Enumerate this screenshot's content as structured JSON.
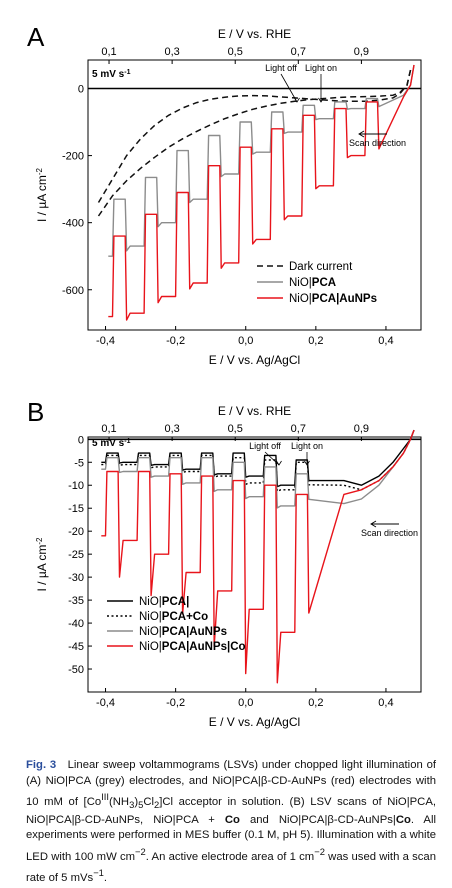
{
  "chart_data": [
    {
      "panel": "A",
      "type": "line",
      "xlabel": "E / V vs. Ag/AgCl",
      "ylabel": "I / µA cm⁻²",
      "top_xlabel": "E / V vs. RHE",
      "xlim": [
        -0.45,
        0.5
      ],
      "ylim": [
        -720,
        85
      ],
      "xticks": [
        "-0,4",
        "-0,2",
        "0,0",
        "0,2",
        "0,4"
      ],
      "xtick_values": [
        -0.4,
        -0.2,
        0.0,
        0.2,
        0.4
      ],
      "yticks": [
        "0",
        "-200",
        "-400",
        "-600"
      ],
      "ytick_values": [
        0,
        -200,
        -400,
        -600
      ],
      "top_xticks": [
        "0,1",
        "0,3",
        "0,5",
        "0,7",
        "0,9"
      ],
      "top_xtick_values": [
        -0.39,
        -0.21,
        -0.03,
        0.15,
        0.33
      ],
      "legend_position": "lower-right",
      "annotations": {
        "scan_rate": "5 mV s⁻¹",
        "light_off": "Light off",
        "light_on": "Light on",
        "scan_direction": "Scan direction"
      },
      "chop": {
        "dark_start": [
          -0.38,
          -0.29,
          -0.2,
          -0.11,
          -0.02,
          0.07,
          0.16,
          0.25,
          0.34
        ],
        "dark_width": 0.036,
        "end": 0.43
      },
      "series": [
        {
          "name": "Dark current",
          "style": "dashed",
          "color": "#111111",
          "x": [
            -0.42,
            -0.38,
            -0.34,
            -0.3,
            -0.26,
            -0.22,
            -0.18,
            -0.14,
            -0.1,
            -0.06,
            -0.02,
            0.02,
            0.06,
            0.1,
            0.14,
            0.18,
            0.22,
            0.26,
            0.3,
            0.34,
            0.38,
            0.42,
            0.44,
            0.46,
            0.47
          ],
          "y": [
            -380,
            -320,
            -275,
            -238,
            -205,
            -175,
            -150,
            -128,
            -108,
            -90,
            -75,
            -62,
            -52,
            -44,
            -38,
            -33,
            -30,
            -27,
            -25,
            -24,
            -23,
            -20,
            -12,
            10,
            55
          ]
        },
        {
          "name": "Dark current",
          "style": "dashed",
          "color": "#111111",
          "x": [
            -0.42,
            -0.38,
            -0.34,
            -0.3,
            -0.26,
            -0.22,
            -0.18,
            -0.14,
            -0.1,
            -0.06,
            -0.02,
            0.02,
            0.06,
            0.1,
            0.14,
            0.18,
            0.22,
            0.26,
            0.3,
            0.34,
            0.38,
            0.42,
            0.44,
            0.46,
            0.47
          ],
          "y": [
            -340,
            -270,
            -200,
            -150,
            -110,
            -80,
            -58,
            -42,
            -32,
            -26,
            -22,
            -21,
            -22,
            -25,
            -28,
            -31,
            -34,
            -37,
            -38,
            -38,
            -35,
            -28,
            -15,
            10,
            55
          ]
        },
        {
          "name": "NiO|PCA",
          "bold": "PCA",
          "color": "#8c8c8c",
          "dark": [
            -330,
            -265,
            -185,
            -140,
            -100,
            -70,
            -50,
            -40,
            -30
          ],
          "light": [
            -500,
            -470,
            -400,
            -330,
            -255,
            -190,
            -130,
            -90,
            -60
          ],
          "x_end": [
            0.45,
            0.47,
            0.48
          ],
          "y_end": [
            -20,
            10,
            70
          ]
        },
        {
          "name": "NiO|PCA|AuNPs",
          "bold": "PCA|AuNPs",
          "color": "#e8141b",
          "dark": [
            -440,
            -375,
            -310,
            -230,
            -175,
            -120,
            -80,
            -60,
            -40
          ],
          "light": [
            -680,
            -670,
            -620,
            -580,
            -520,
            -450,
            -380,
            -290,
            -200
          ],
          "x_end": [
            0.45,
            0.47,
            0.48
          ],
          "y_end": [
            -25,
            10,
            70
          ]
        }
      ]
    },
    {
      "panel": "B",
      "type": "line",
      "xlabel": "E / V vs. Ag/AgCl",
      "ylabel": "I / µA cm⁻²",
      "top_xlabel": "E / V vs. RHE",
      "xlim": [
        -0.45,
        0.5
      ],
      "ylim": [
        -55,
        0.5
      ],
      "xticks": [
        "-0,4",
        "-0,2",
        "0,0",
        "0,2",
        "0,4"
      ],
      "xtick_values": [
        -0.4,
        -0.2,
        0.0,
        0.2,
        0.4
      ],
      "yticks": [
        "0",
        "-5",
        "-10",
        "-15",
        "-20",
        "-25",
        "-30",
        "-35",
        "-40",
        "-45",
        "-50"
      ],
      "ytick_values": [
        0,
        -5,
        -10,
        -15,
        -20,
        -25,
        -30,
        -35,
        -40,
        -45,
        -50
      ],
      "top_xticks": [
        "0,1",
        "0,3",
        "0,5",
        "0,7",
        "0,9"
      ],
      "top_xtick_values": [
        -0.39,
        -0.21,
        -0.03,
        0.15,
        0.33
      ],
      "legend_position": "lower-left",
      "annotations": {
        "scan_rate": "5 mV s⁻¹",
        "light_off": "Light off",
        "light_on": "Light on",
        "scan_direction": "Scan direction"
      },
      "chop": {
        "dark_start": [
          -0.4,
          -0.31,
          -0.22,
          -0.13,
          -0.04,
          0.05,
          0.14
        ],
        "dark_width": 0.036,
        "end": 0.24
      },
      "series": [
        {
          "name": "NiO|PCA|",
          "bold": "PCA|",
          "style": "solid",
          "color": "#000000",
          "dark": [
            -3,
            -3,
            -3,
            -3,
            -3,
            -3.5,
            -4.5
          ],
          "light": [
            -5,
            -5,
            -5.5,
            -6.5,
            -7.5,
            -8,
            -10
          ],
          "x_end": [
            0.28,
            0.33,
            0.38,
            0.42,
            0.45,
            0.47,
            0.48
          ],
          "y_end": [
            -9,
            -10,
            -8,
            -5,
            -2,
            0,
            2
          ]
        },
        {
          "name": "NiO|PCA+Co",
          "bold": "PCA+Co",
          "style": "dotted",
          "color": "#000000",
          "dark": [
            -3.5,
            -3.5,
            -3.5,
            -3.5,
            -4,
            -4.5,
            -5
          ],
          "light": [
            -5.5,
            -5.5,
            -6,
            -7,
            -8,
            -9.5,
            -11
          ],
          "x_end": [
            0.28,
            0.33,
            0.38,
            0.42,
            0.45,
            0.47,
            0.48
          ],
          "y_end": [
            -10,
            -11,
            -9,
            -6,
            -3,
            0,
            2
          ]
        },
        {
          "name": "NiO|PCA|AuNPs",
          "bold": "PCA|AuNPs",
          "style": "solid",
          "color": "#8c8c8c",
          "dark": [
            -4,
            -4,
            -4,
            -4,
            -5,
            -6,
            -7.5
          ],
          "light": [
            -6.5,
            -7,
            -8,
            -9.5,
            -11,
            -12.5,
            -14.5
          ],
          "x_end": [
            0.28,
            0.33,
            0.38,
            0.42,
            0.45,
            0.47,
            0.48
          ],
          "y_end": [
            -14,
            -13,
            -10,
            -6,
            -3,
            0,
            2
          ]
        },
        {
          "name": "NiO|PCA|AuNPs|Co",
          "bold": "PCA|AuNPs|Co",
          "style": "solid",
          "color": "#e8141b",
          "dark": [
            -7,
            -7,
            -7.5,
            -8,
            -9,
            -10,
            -12
          ],
          "light": [
            -21,
            -22,
            -25,
            -29,
            -33,
            -37,
            -42
          ],
          "spike": [
            -30,
            -34,
            -38,
            -45,
            -51,
            -53
          ],
          "x_end": [
            0.28,
            0.33,
            0.38,
            0.42,
            0.45,
            0.47,
            0.48
          ],
          "y_end": [
            -12,
            -11,
            -9,
            -6,
            -3,
            0,
            2
          ]
        }
      ]
    }
  ],
  "panel_letters": [
    "A",
    "B"
  ],
  "caption": {
    "label": "Fig. 3",
    "t1": "Linear sweep voltammograms (LSVs) under chopped light illumination of (A) NiO|PCA (grey) electrodes, and NiO|PCA|β-CD-AuNPs (red) electrodes with 10 mM of [Co",
    "sup1": "III",
    "t2": "(NH",
    "sub1": "3",
    "t3": ")",
    "sub2": "5",
    "t4": "Cl",
    "sub3": "2",
    "t5": "]Cl acceptor in solution. (B) LSV scans of NiO|PCA, NiO|PCA|β-CD-AuNPs, NiO|PCA + ",
    "b1": "Co",
    "t6": " and NiO|PCA|β-CD-AuNPs|",
    "b2": "Co",
    "t7": ". All experiments were performed in MES buffer (0.1 M, pH 5). Illumination with a white LED with 100 mW cm",
    "sup2": "−2",
    "t8": ". An active electrode area of 1 cm",
    "sup3": "−2",
    "t9": " was used with a scan rate of 5 mVs",
    "sup4": "−1",
    "t10": "."
  }
}
